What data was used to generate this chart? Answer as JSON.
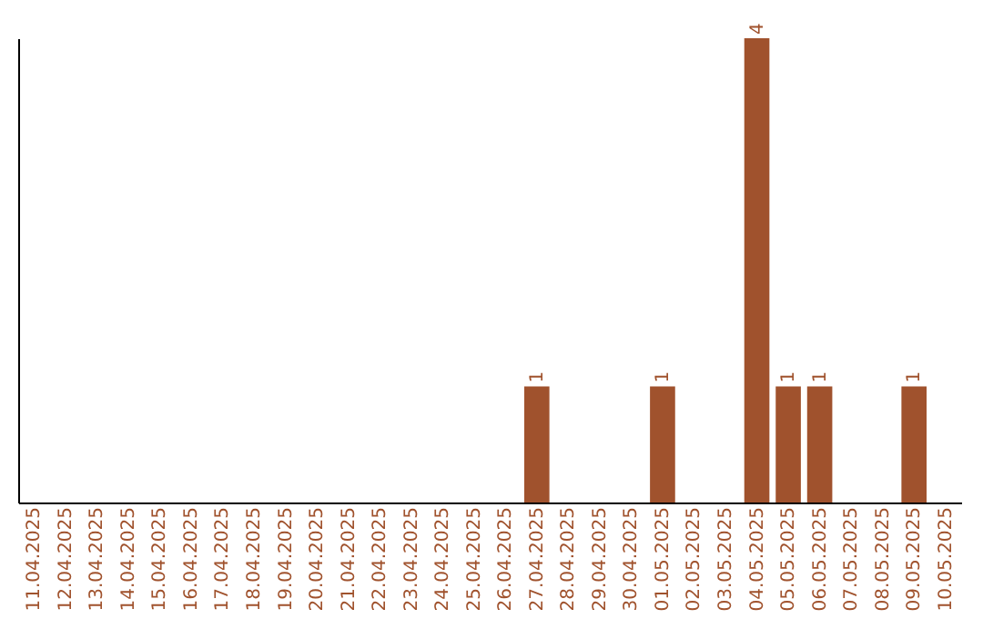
{
  "chart_data": {
    "type": "bar",
    "categories": [
      "11.04.2025",
      "12.04.2025",
      "13.04.2025",
      "14.04.2025",
      "15.04.2025",
      "16.04.2025",
      "17.04.2025",
      "18.04.2025",
      "19.04.2025",
      "20.04.2025",
      "21.04.2025",
      "22.04.2025",
      "23.04.2025",
      "24.04.2025",
      "25.04.2025",
      "26.04.2025",
      "27.04.2025",
      "28.04.2025",
      "29.04.2025",
      "30.04.2025",
      "01.05.2025",
      "02.05.2025",
      "03.05.2025",
      "04.05.2025",
      "05.05.2025",
      "06.05.2025",
      "07.05.2025",
      "08.05.2025",
      "09.05.2025",
      "10.05.2025"
    ],
    "values": [
      null,
      null,
      null,
      null,
      null,
      null,
      null,
      null,
      null,
      null,
      null,
      null,
      null,
      null,
      null,
      null,
      1,
      null,
      null,
      null,
      1,
      null,
      null,
      4,
      1,
      1,
      null,
      null,
      1,
      null
    ],
    "value_labels": [
      null,
      null,
      null,
      null,
      null,
      null,
      null,
      null,
      null,
      null,
      null,
      null,
      null,
      null,
      null,
      null,
      "1",
      null,
      null,
      null,
      "1",
      null,
      null,
      "4",
      "1",
      "1",
      null,
      null,
      "1",
      null
    ],
    "color": "#a0522d",
    "grid": false,
    "tick_labels": "x"
  }
}
